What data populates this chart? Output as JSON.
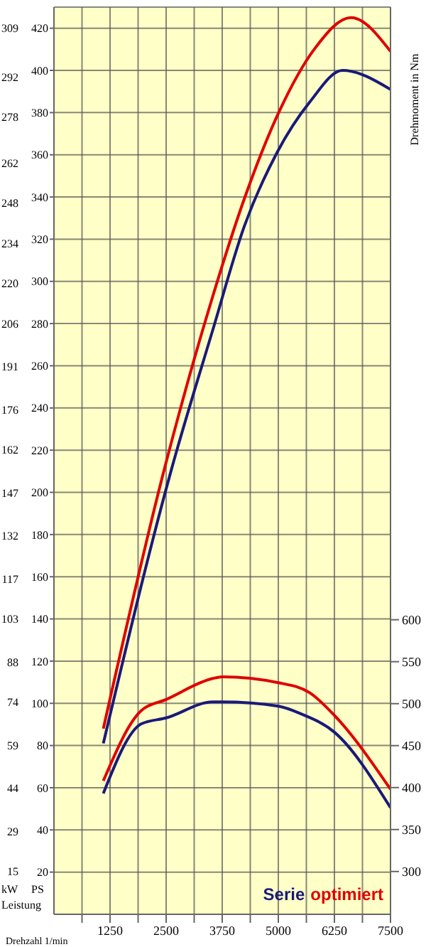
{
  "chart_data": {
    "type": "line",
    "xlabel": "Drehzahl 1/min",
    "ylabel": "PS",
    "y3label": "kW",
    "y2label": "Drehmoment in Nm",
    "annotations": [
      "Leistung"
    ],
    "xlim": [
      0,
      7500
    ],
    "xticks": [
      {
        "value": 625,
        "label": null
      },
      1250,
      {
        "value": 1875,
        "label": null
      },
      2500,
      {
        "value": 3125,
        "label": null
      },
      3750,
      {
        "value": 4375,
        "label": null
      },
      5000,
      {
        "value": 5625,
        "label": null
      },
      6250,
      {
        "value": 6875,
        "label": null
      },
      7500
    ],
    "ylim": [
      0,
      430
    ],
    "yticks": [
      20,
      40,
      60,
      80,
      100,
      120,
      140,
      160,
      180,
      200,
      220,
      240,
      260,
      280,
      300,
      320,
      340,
      360,
      380,
      400,
      420
    ],
    "y3lim": [
      0,
      316.3
    ],
    "y3ticks": [
      15,
      29,
      44,
      59,
      74,
      88,
      103,
      117,
      132,
      147,
      162,
      176,
      191,
      206,
      220,
      234,
      248,
      262,
      278,
      292,
      309
    ],
    "y2lim": [
      249,
      1330
    ],
    "y2ticks": [
      300,
      350,
      400,
      450,
      500,
      550,
      600
    ],
    "grid": true,
    "legend": "bottom right",
    "marker": "none",
    "line_style": "solid",
    "series": [
      {
        "name": "optimiert",
        "color": "#e00000",
        "x": [
          1100,
          2460,
          3540,
          4240,
          5030,
          5800,
          6620,
          7500
        ],
        "values": [
          88,
          211,
          293,
          339,
          381,
          410,
          425,
          409
        ]
      },
      {
        "name": "Serie",
        "color": "#1a1a7a",
        "x": [
          1100,
          2620,
          3540,
          4240,
          4970,
          5700,
          6430,
          7500
        ],
        "values": [
          81,
          211,
          277,
          326,
          361,
          385,
          400,
          391
        ]
      },
      {
        "color": "#e00000",
        "axis": "y2",
        "x": [
          1100,
          1950,
          2500,
          3540,
          3750,
          5000,
          5700,
          6250,
          7500
        ],
        "values": [
          408,
          492,
          505,
          530,
          532,
          525,
          513,
          486,
          398
        ]
      },
      {
        "color": "#1a1a7a",
        "axis": "y2",
        "x": [
          1100,
          1950,
          2500,
          3540,
          3750,
          5000,
          5500,
          6250,
          7500
        ],
        "values": [
          393,
          476,
          483,
          502,
          502,
          497,
          488,
          466,
          376
        ]
      }
    ]
  }
}
